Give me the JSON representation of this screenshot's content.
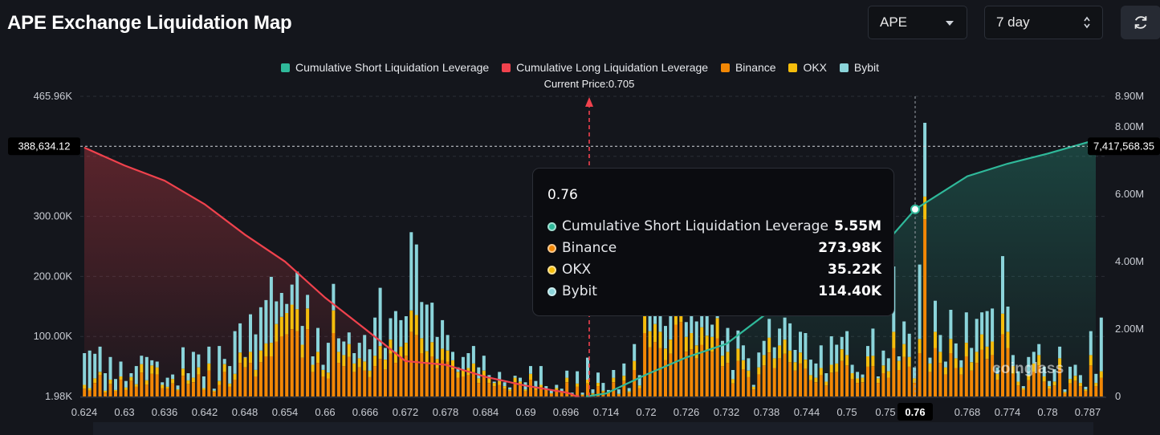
{
  "header": {
    "title": "APE Exchange Liquidation Map",
    "coin_select": {
      "value": "APE"
    },
    "range_select": {
      "value": "7 day"
    }
  },
  "icons": {
    "coin_caret": "chevron-down-icon",
    "range_updown": "updown-arrows-icon",
    "refresh": "refresh-icon"
  },
  "colors": {
    "short_cum": "#2fb99a",
    "long_cum": "#f0424d",
    "binance": "#f28705",
    "okx": "#f5bd0c",
    "bybit": "#8bd4da",
    "background": "#14161c"
  },
  "legend": [
    {
      "label": "Cumulative Short Liquidation Leverage",
      "color": "#2fb99a"
    },
    {
      "label": "Cumulative Long Liquidation Leverage",
      "color": "#f0424d"
    },
    {
      "label": "Binance",
      "color": "#f28705"
    },
    {
      "label": "OKX",
      "color": "#f5bd0c"
    },
    {
      "label": "Bybit",
      "color": "#8bd4da"
    }
  ],
  "current_price_label": "Current Price:0.705",
  "crosshair": {
    "left_value": "388,634.12",
    "right_value": "7,417,568.35",
    "x_label": "0.76"
  },
  "tooltip": {
    "title": "0.76",
    "rows": [
      {
        "label": "Cumulative Short Liquidation Leverage",
        "value": "5.55M",
        "color": "#2fb99a"
      },
      {
        "label": "Binance",
        "value": "273.98K",
        "color": "#f28705"
      },
      {
        "label": "OKX",
        "value": "35.22K",
        "color": "#f5bd0c"
      },
      {
        "label": "Bybit",
        "value": "114.40K",
        "color": "#8bd4da"
      }
    ]
  },
  "watermark": "coinglass",
  "chart_data": {
    "type": "bar",
    "title": "APE Exchange Liquidation Map",
    "current_price": 0.705,
    "x_ticks": [
      "0.624",
      "0.63",
      "0.636",
      "0.642",
      "0.648",
      "0.654",
      "0.66",
      "0.666",
      "0.672",
      "0.678",
      "0.684",
      "0.69",
      "0.696",
      "0.714",
      "0.72",
      "0.726",
      "0.732",
      "0.738",
      "0.744",
      "0.75",
      "0.75",
      "0.76",
      "0.768",
      "0.774",
      "0.78",
      "0.787"
    ],
    "y_left_ticks": [
      "465.96K",
      "",
      "300.00K",
      "200.00K",
      "100.00K",
      "1.98K"
    ],
    "y_right_ticks": [
      "8.90M",
      "8.00M",
      "6.00M",
      "4.00M",
      "2.00M",
      "0"
    ],
    "y_left_range": [
      1980,
      465960
    ],
    "y_right_range": [
      0,
      8900000
    ],
    "grid": true,
    "legend_position": "top-center",
    "series": [
      {
        "name": "Binance",
        "values": [
          12000,
          9000,
          21000,
          33000,
          6000,
          19000,
          8000,
          26000,
          10000,
          24000,
          15000,
          37000,
          18000,
          35000,
          34000,
          13000,
          12000,
          20000,
          9000,
          32000,
          19000,
          22000,
          34000,
          10000,
          40000,
          7000,
          18000,
          38000,
          15000,
          26000,
          52000,
          45000,
          52000,
          31000,
          53000,
          62000,
          62000,
          85000,
          93000,
          96000,
          104000,
          101000,
          60000,
          104000,
          38000,
          52000,
          31000,
          28000,
          98000,
          52000,
          47000,
          61000,
          38000,
          45000,
          40000,
          30000,
          47000,
          58000,
          42000,
          66000,
          52000,
          59000,
          63000,
          100000,
          95000,
          67000,
          52000,
          62000,
          44000,
          56000,
          54000,
          42000,
          29000,
          31000,
          33000,
          38000,
          21000,
          30000,
          21000,
          16000,
          18000,
          12000,
          8000,
          22000,
          17000,
          8000,
          26000,
          10000,
          14000,
          9000,
          4000,
          10000,
          6000,
          22000,
          3000,
          15000,
          2000,
          20000,
          4000,
          16000,
          7000,
          5000,
          22000,
          3000,
          24000,
          6000,
          41000,
          13000,
          98000,
          76000,
          84000,
          75000,
          56000,
          66000,
          111000,
          115000,
          69000,
          73000,
          59000,
          80000,
          70000,
          69000,
          90000,
          47000,
          52000,
          20000,
          55000,
          42000,
          30000,
          11000,
          34000,
          48000,
          68000,
          44000,
          59000,
          66000,
          53000,
          40000,
          51000,
          43000,
          25000,
          22000,
          33000,
          17000,
          37000,
          38000,
          55000,
          48000,
          27000,
          21000,
          22000,
          46000,
          47000,
          21000,
          36000,
          29000,
          75000,
          41000,
          61000,
          46000,
          21000,
          67000,
          274000,
          38000,
          75000,
          52000,
          34000,
          67000,
          44000,
          34000,
          62000,
          40000,
          52000,
          72000,
          58000,
          64000,
          26000,
          96000,
          75000,
          35000,
          17000,
          10000,
          25000,
          38000,
          48000,
          23000,
          12000,
          17000,
          44000,
          5000,
          20000,
          24000,
          16000,
          8000,
          48000,
          16000,
          29000
        ]
      },
      {
        "name": "OKX",
        "values": [
          6000,
          4000,
          7000,
          5000,
          3000,
          7000,
          2000,
          5000,
          4000,
          6000,
          4000,
          13000,
          7000,
          13000,
          11000,
          5000,
          3000,
          7000,
          2000,
          11000,
          6000,
          7000,
          11000,
          3000,
          11000,
          2000,
          6000,
          12000,
          5000,
          9000,
          16000,
          15000,
          17000,
          10000,
          18000,
          20000,
          21000,
          27000,
          30000,
          33000,
          38000,
          34000,
          20000,
          32000,
          11000,
          17000,
          10000,
          9000,
          35000,
          17000,
          17000,
          20000,
          13000,
          14000,
          14000,
          10000,
          16000,
          20000,
          15000,
          22000,
          17000,
          18000,
          20000,
          33000,
          31000,
          23000,
          18000,
          22000,
          14000,
          18000,
          17000,
          14000,
          9000,
          10000,
          11000,
          13000,
          7000,
          10000,
          7000,
          5000,
          6000,
          4000,
          3000,
          7000,
          6000,
          3000,
          9000,
          3000,
          4000,
          3000,
          1000,
          3000,
          2000,
          7000,
          1000,
          5000,
          1000,
          6000,
          1000,
          5000,
          2000,
          2000,
          7000,
          1000,
          8000,
          2000,
          14000,
          4000,
          34000,
          25000,
          28000,
          25000,
          18000,
          22000,
          37000,
          39000,
          23000,
          25000,
          20000,
          27000,
          24000,
          23000,
          31000,
          16000,
          17000,
          7000,
          19000,
          14000,
          10000,
          4000,
          11000,
          16000,
          23000,
          15000,
          20000,
          22000,
          18000,
          13000,
          17000,
          14000,
          8000,
          7000,
          11000,
          6000,
          12000,
          13000,
          18000,
          16000,
          9000,
          7000,
          7000,
          16000,
          16000,
          7000,
          12000,
          10000,
          25000,
          14000,
          20000,
          15000,
          7000,
          22000,
          35000,
          13000,
          25000,
          17000,
          11000,
          22000,
          15000,
          11000,
          21000,
          13000,
          17000,
          24000,
          19000,
          21000,
          9000,
          32000,
          25000,
          12000,
          6000,
          3000,
          8000,
          13000,
          16000,
          8000,
          4000,
          6000,
          15000,
          2000,
          7000,
          8000,
          5000,
          3000,
          16000,
          5000,
          10000
        ]
      },
      {
        "name": "Bybit",
        "values": [
          49000,
          58000,
          38000,
          39000,
          27000,
          35000,
          17000,
          23000,
          10000,
          6000,
          28000,
          13000,
          36000,
          8000,
          9000,
          4000,
          14000,
          7000,
          6000,
          33000,
          11000,
          40000,
          20000,
          18000,
          26000,
          3000,
          54000,
          8000,
          27000,
          66000,
          45000,
          1000,
          58000,
          55000,
          67000,
          67000,
          102000,
          35000,
          37000,
          14000,
          31000,
          58000,
          29000,
          21000,
          13000,
          37000,
          8000,
          46000,
          41000,
          21000,
          21000,
          18000,
          16000,
          24000,
          41000,
          33000,
          59000,
          90000,
          18000,
          33000,
          63000,
          41000,
          41000,
          121000,
          109000,
          56000,
          72000,
          61000,
          34000,
          44000,
          24000,
          13000,
          7000,
          20000,
          23000,
          27000,
          17000,
          23000,
          5000,
          2000,
          14000,
          6000,
          3000,
          3000,
          6000,
          11000,
          12000,
          11000,
          29000,
          4000,
          5000,
          5000,
          4000,
          11000,
          2000,
          19000,
          3000,
          34000,
          6000,
          16000,
          12000,
          3000,
          12000,
          7000,
          19000,
          5000,
          26000,
          16000,
          47000,
          48000,
          49000,
          53000,
          35000,
          55000,
          63000,
          71000,
          23000,
          38000,
          37000,
          45000,
          36000,
          19000,
          70000,
          23000,
          37000,
          14000,
          28000,
          23000,
          19000,
          3000,
          23000,
          22000,
          29000,
          17000,
          26000,
          34000,
          42000,
          19000,
          32000,
          41000,
          24000,
          22000,
          35000,
          13000,
          44000,
          29000,
          19000,
          37000,
          13000,
          10000,
          5000,
          16000,
          42000,
          3000,
          23000,
          20000,
          101000,
          7000,
          35000,
          36000,
          17000,
          115000,
          114000,
          9000,
          48000,
          26000,
          9000,
          45000,
          23000,
          11000,
          47000,
          22000,
          51000,
          34000,
          55000,
          51000,
          10000,
          89000,
          39000,
          17000,
          16000,
          3000,
          28000,
          18000,
          17000,
          15000,
          8000,
          19000,
          18000,
          4000,
          19000,
          17000,
          12000,
          4000,
          37000,
          14000,
          83000
        ]
      },
      {
        "name": "Cumulative Long Liquidation Leverage",
        "x": [
          0.624,
          0.63,
          0.636,
          0.642,
          0.648,
          0.654,
          0.66,
          0.666,
          0.672,
          0.678,
          0.684,
          0.69,
          0.696,
          0.699,
          0.7,
          0.701,
          0.702
        ],
        "values": [
          7380000,
          6850000,
          6400000,
          5700000,
          4800000,
          4000000,
          2930000,
          2000000,
          1050000,
          940000,
          580000,
          320000,
          120000,
          60000,
          20000,
          10000,
          0
        ]
      },
      {
        "name": "Cumulative Short Liquidation Leverage",
        "x": [
          0.705,
          0.714,
          0.72,
          0.726,
          0.732,
          0.738,
          0.744,
          0.75,
          0.755,
          0.76,
          0.768,
          0.774,
          0.78,
          0.787,
          0.788
        ],
        "values": [
          0,
          90000,
          650000,
          1160000,
          1560000,
          2460000,
          3130000,
          3940000,
          4600000,
          5550000,
          6530000,
          6900000,
          7200000,
          7540000,
          7620000
        ]
      }
    ]
  }
}
